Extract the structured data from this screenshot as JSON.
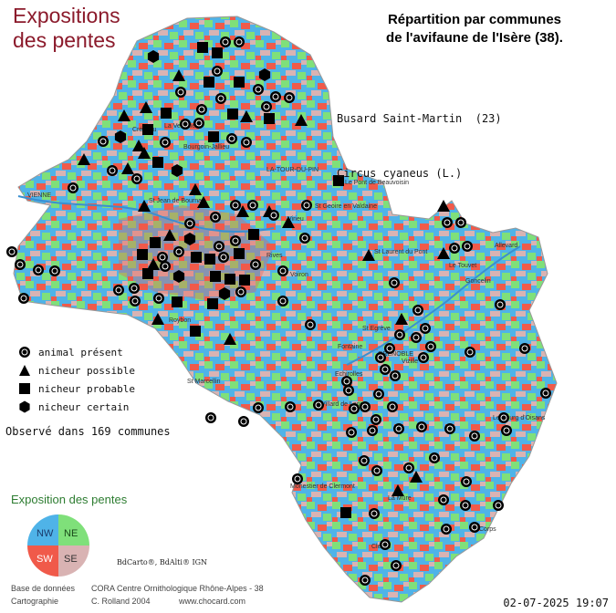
{
  "title_left": "Expositions\ndes pentes",
  "title_right": "Répartition par communes\nde l'avifaune de l'Isère (38).",
  "species": {
    "common_name": "Busard Saint-Martin  (23)",
    "latin_name": "Circus cyaneus (L.)"
  },
  "legend": [
    {
      "icon": "animal-present-icon",
      "label": "animal présent"
    },
    {
      "icon": "nicheur-possible-icon",
      "label": "nicheur possible"
    },
    {
      "icon": "nicheur-probable-icon",
      "label": "nicheur probable"
    },
    {
      "icon": "nicheur-certain-icon",
      "label": "nicheur certain"
    }
  ],
  "observed_text": "Observé dans 169 communes",
  "exposition": {
    "title": "Exposition des pentes",
    "quadrants": [
      {
        "label": "NW",
        "color": "#4fb3e8"
      },
      {
        "label": "NE",
        "color": "#7fe07a"
      },
      {
        "label": "SW",
        "color": "#f05a4a"
      },
      {
        "label": "SE",
        "color": "#d9b3b3"
      }
    ]
  },
  "credit": "BdCarto®, BdAlti® IGN",
  "footer": {
    "db_label": "Base de données",
    "db_value": "CORA Centre Ornithologique Rhône-Alpes - 38",
    "carto_label": "Cartographie",
    "carto_value": "C. Rolland 2004",
    "website": "www.chocard.com"
  },
  "date": "02-07-2025 19:07",
  "map_labels": {
    "vienne": "VIENNE",
    "tour_du_pin": "LA-TOUR-DU-PIN",
    "pont_beauvoisin": "Le Pont de Beauvoisin",
    "grenoble": "GRENOBLE",
    "st_marcellin": "St Marcellin",
    "voiron": "Voiron",
    "allevard": "Allevard",
    "le_touvet": "Le Touvet",
    "la_mure": "La Mure",
    "monestier": "Monestier de Clermont",
    "villard_de_lans": "Villard de Lans",
    "bourgoin": "Bourgoin-Jallieu",
    "cremieu": "Crémieu",
    "st_laurent_du_pont": "St Laurent du Pont",
    "vizille": "Vizille",
    "roybon": "Roybon",
    "rives": "Rives",
    "virieu": "Virieu",
    "st_geoire": "St Geoire en Valdaine",
    "goncelin": "Goncelin",
    "echirolles": "Echirolles",
    "fontaine": "Fontaine",
    "st_egreve": "St Egrève",
    "clelles": "Clelles",
    "corps": "Corps",
    "le_bourg_doisans": "Le Bourg d'Oisans",
    "st_jean_de_bournay": "St Jean de Bournay",
    "la_verpilliere": "La Verpillière"
  },
  "colors": {
    "nw": "#4fb3e8",
    "ne": "#7fe07a",
    "sw": "#f05a4a",
    "se": "#d9b3b3",
    "title_brown": "#8b1a2b",
    "expo_green": "#2e7d32"
  }
}
